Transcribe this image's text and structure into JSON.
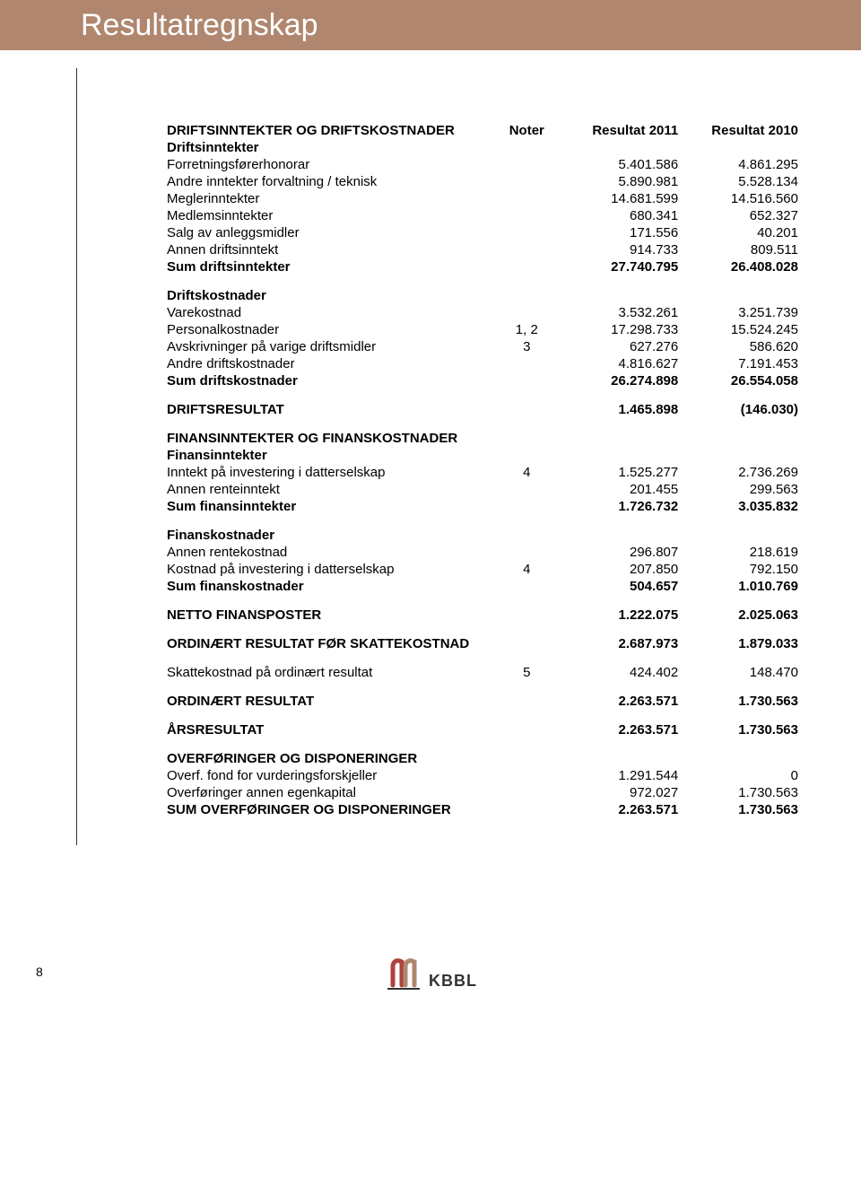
{
  "page": {
    "title": "Resultatregnskap",
    "page_number": "8",
    "logo_text": "KBBL",
    "logo_color_left": "#b0413e",
    "logo_color_right": "#b0866f"
  },
  "columns": {
    "noter": "Noter",
    "r2011": "Resultat 2011",
    "r2010": "Resultat 2010"
  },
  "sections": [
    {
      "heading": "DRIFTSINNTEKTER OG DRIFTSKOSTNADER",
      "subheading": "Driftsinntekter",
      "rows": [
        {
          "label": "Forretningsførerhonorar",
          "noter": "",
          "r2011": "5.401.586",
          "r2010": "4.861.295"
        },
        {
          "label": "Andre inntekter forvaltning / teknisk",
          "noter": "",
          "r2011": "5.890.981",
          "r2010": "5.528.134"
        },
        {
          "label": "Meglerinntekter",
          "noter": "",
          "r2011": "14.681.599",
          "r2010": "14.516.560"
        },
        {
          "label": "Medlemsinntekter",
          "noter": "",
          "r2011": "680.341",
          "r2010": "652.327"
        },
        {
          "label": "Salg av anleggsmidler",
          "noter": "",
          "r2011": "171.556",
          "r2010": "40.201"
        },
        {
          "label": "Annen driftsinntekt",
          "noter": "",
          "r2011": "914.733",
          "r2010": "809.511"
        },
        {
          "label": "Sum driftsinntekter",
          "noter": "",
          "r2011": "27.740.795",
          "r2010": "26.408.028",
          "bold": true
        }
      ]
    },
    {
      "subheading": "Driftskostnader",
      "rows": [
        {
          "label": "Varekostnad",
          "noter": "",
          "r2011": "3.532.261",
          "r2010": "3.251.739"
        },
        {
          "label": "Personalkostnader",
          "noter": "1, 2",
          "r2011": "17.298.733",
          "r2010": "15.524.245"
        },
        {
          "label": "Avskrivninger på varige driftsmidler",
          "noter": "3",
          "r2011": "627.276",
          "r2010": "586.620"
        },
        {
          "label": "Andre driftskostnader",
          "noter": "",
          "r2011": "4.816.627",
          "r2010": "7.191.453"
        },
        {
          "label": "Sum driftskostnader",
          "noter": "",
          "r2011": "26.274.898",
          "r2010": "26.554.058",
          "bold": true
        }
      ]
    },
    {
      "rows": [
        {
          "label": "DRIFTSRESULTAT",
          "noter": "",
          "r2011": "1.465.898",
          "r2010": "(146.030)",
          "bold": true
        }
      ]
    },
    {
      "heading": "FINANSINNTEKTER OG FINANSKOSTNADER",
      "subheading": "Finansinntekter",
      "rows": [
        {
          "label": "Inntekt på investering i datterselskap",
          "noter": "4",
          "r2011": "1.525.277",
          "r2010": "2.736.269"
        },
        {
          "label": "Annen renteinntekt",
          "noter": "",
          "r2011": "201.455",
          "r2010": "299.563"
        },
        {
          "label": "Sum finansinntekter",
          "noter": "",
          "r2011": "1.726.732",
          "r2010": "3.035.832",
          "bold": true
        }
      ]
    },
    {
      "subheading": "Finanskostnader",
      "rows": [
        {
          "label": "Annen rentekostnad",
          "noter": "",
          "r2011": "296.807",
          "r2010": "218.619"
        },
        {
          "label": "Kostnad på investering i datterselskap",
          "noter": "4",
          "r2011": "207.850",
          "r2010": "792.150"
        },
        {
          "label": "Sum finanskostnader",
          "noter": "",
          "r2011": "504.657",
          "r2010": "1.010.769",
          "bold": true
        }
      ]
    },
    {
      "rows": [
        {
          "label": "NETTO FINANSPOSTER",
          "noter": "",
          "r2011": "1.222.075",
          "r2010": "2.025.063",
          "bold": true
        }
      ]
    },
    {
      "rows": [
        {
          "label": "ORDINÆRT RESULTAT FØR SKATTEKOSTNAD",
          "noter": "",
          "r2011": "2.687.973",
          "r2010": "1.879.033",
          "bold": true
        }
      ]
    },
    {
      "rows": [
        {
          "label": "Skattekostnad på ordinært resultat",
          "noter": "5",
          "r2011": "424.402",
          "r2010": "148.470"
        }
      ]
    },
    {
      "rows": [
        {
          "label": "ORDINÆRT RESULTAT",
          "noter": "",
          "r2011": "2.263.571",
          "r2010": "1.730.563",
          "bold": true
        }
      ]
    },
    {
      "rows": [
        {
          "label": "ÅRSRESULTAT",
          "noter": "",
          "r2011": "2.263.571",
          "r2010": "1.730.563",
          "bold": true
        }
      ]
    },
    {
      "heading": "OVERFØRINGER OG DISPONERINGER",
      "rows": [
        {
          "label": "Overf. fond for vurderingsforskjeller",
          "noter": "",
          "r2011": "1.291.544",
          "r2010": "0"
        },
        {
          "label": "Overføringer annen egenkapital",
          "noter": "",
          "r2011": "972.027",
          "r2010": "1.730.563"
        },
        {
          "label": "SUM OVERFØRINGER OG DISPONERINGER",
          "noter": "",
          "r2011": "2.263.571",
          "r2010": "1.730.563",
          "bold": true
        }
      ]
    }
  ]
}
